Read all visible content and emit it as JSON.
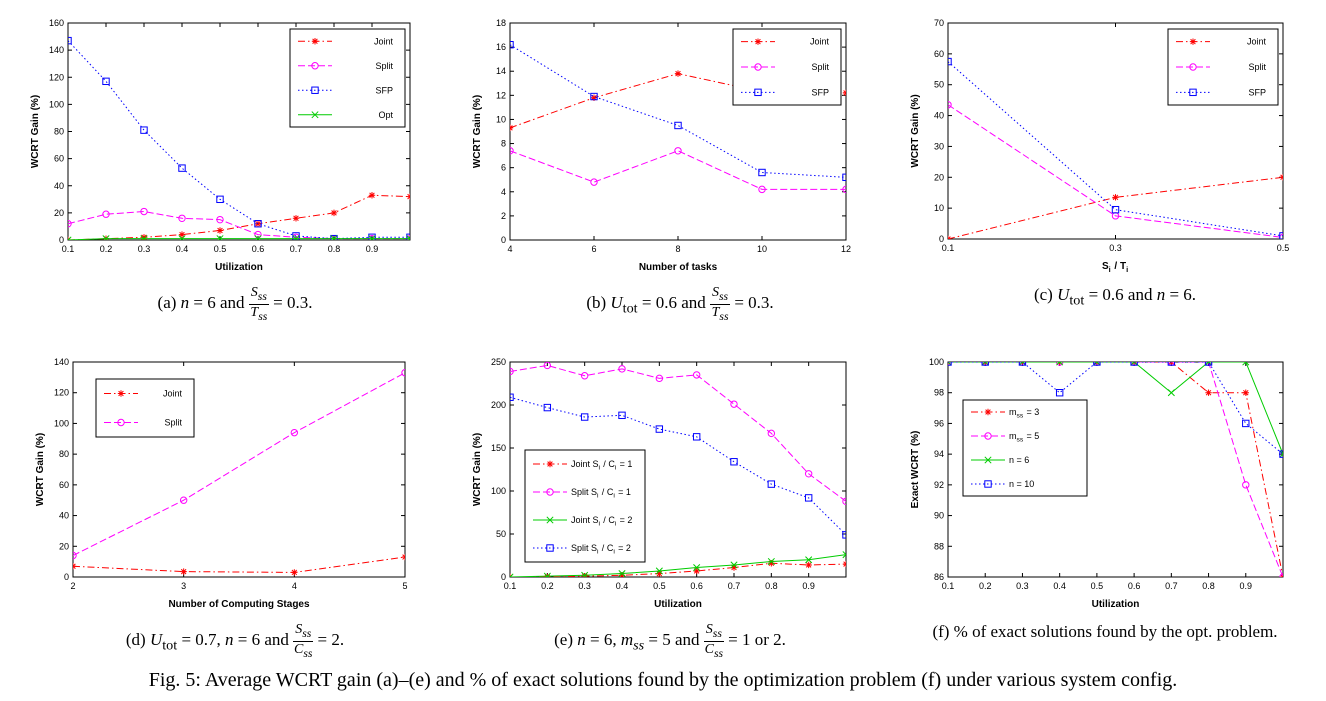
{
  "figure_caption": "Fig. 5: Average WCRT gain (a)–(e) and % of exact solutions found by the optimization problem (f) under various system config.",
  "chart_data": [
    {
      "id": "a",
      "type": "line",
      "caption": "(a) n = 6 and S_ss/T_ss = 0.3.",
      "xlabel": "Utilization",
      "ylabel": "WCRT Gain (%)",
      "x": [
        0.1,
        0.2,
        0.3,
        0.4,
        0.5,
        0.6,
        0.7,
        0.8,
        0.9,
        1.0
      ],
      "xlim": [
        0.1,
        1.0
      ],
      "ylim": [
        0,
        160
      ],
      "xticks": [
        0.1,
        0.2,
        0.3,
        0.4,
        0.5,
        0.6,
        0.7,
        0.8,
        0.9
      ],
      "xtick_labels": [
        "0.1",
        "0.2",
        "0.3",
        "0.4",
        "0.5",
        "0.6",
        "0.7",
        "0.8",
        "0.9"
      ],
      "yticks": [
        0,
        20,
        40,
        60,
        80,
        100,
        120,
        140,
        160
      ],
      "ytick_labels": [
        "0",
        "20",
        "40",
        "60",
        "80",
        "100",
        "120",
        "140",
        "160"
      ],
      "legend": "top-right",
      "series": [
        {
          "name": "Joint",
          "color": "#ff0000",
          "marker": "star",
          "dash": "dashdot",
          "values": [
            0,
            1,
            2,
            4,
            7,
            12,
            16,
            20,
            33,
            32
          ]
        },
        {
          "name": "Split",
          "color": "#ff00ff",
          "marker": "circle",
          "dash": "dashed",
          "values": [
            12,
            19,
            21,
            16,
            15,
            4,
            2,
            1,
            1,
            1
          ]
        },
        {
          "name": "SFP",
          "color": "#0000ff",
          "marker": "square",
          "dash": "dotted",
          "values": [
            147,
            117,
            81,
            53,
            30,
            12,
            3,
            1,
            2,
            2
          ]
        },
        {
          "name": "Opt",
          "color": "#00cc00",
          "marker": "x",
          "dash": "solid",
          "values": [
            0,
            1,
            1,
            1,
            1,
            1,
            1,
            1,
            1,
            1
          ]
        }
      ]
    },
    {
      "id": "b",
      "type": "line",
      "caption": "(b) U_tot = 0.6 and S_ss/T_ss = 0.3.",
      "xlabel": "Number of tasks",
      "ylabel": "WCRT Gain (%)",
      "x": [
        4,
        6,
        8,
        10,
        12
      ],
      "xlim": [
        4,
        12
      ],
      "ylim": [
        0,
        18
      ],
      "xticks": [
        4,
        6,
        8,
        10,
        12
      ],
      "xtick_labels": [
        "4",
        "6",
        "8",
        "10",
        "12"
      ],
      "yticks": [
        0,
        2,
        4,
        6,
        8,
        10,
        12,
        14,
        16,
        18
      ],
      "ytick_labels": [
        "0",
        "2",
        "4",
        "6",
        "8",
        "10",
        "12",
        "14",
        "16",
        "18"
      ],
      "legend": "top-right",
      "series": [
        {
          "name": "Joint",
          "color": "#ff0000",
          "marker": "star",
          "dash": "dashdot",
          "values": [
            9.3,
            11.8,
            13.8,
            12.3,
            12.2
          ]
        },
        {
          "name": "Split",
          "color": "#ff00ff",
          "marker": "circle",
          "dash": "dashed",
          "values": [
            7.4,
            4.8,
            7.4,
            4.2,
            4.2
          ]
        },
        {
          "name": "SFP",
          "color": "#0000ff",
          "marker": "square",
          "dash": "dotted",
          "values": [
            16.2,
            11.9,
            9.5,
            5.6,
            5.2
          ]
        }
      ]
    },
    {
      "id": "c",
      "type": "line",
      "caption": "(c) U_tot = 0.6 and n = 6.",
      "xlabel": "S_i / T_i",
      "ylabel": "WCRT Gain (%)",
      "x": [
        0.1,
        0.3,
        0.5
      ],
      "xlim": [
        0.1,
        0.5
      ],
      "ylim": [
        0,
        70
      ],
      "xticks": [
        0.1,
        0.3,
        0.5
      ],
      "xtick_labels": [
        "0.1",
        "0.3",
        "0.5"
      ],
      "yticks": [
        0,
        10,
        20,
        30,
        40,
        50,
        60,
        70
      ],
      "ytick_labels": [
        "0",
        "10",
        "20",
        "30",
        "40",
        "50",
        "60",
        "70"
      ],
      "legend": "top-right",
      "series": [
        {
          "name": "Joint",
          "color": "#ff0000",
          "marker": "star",
          "dash": "dashdot",
          "values": [
            0,
            13.5,
            20
          ]
        },
        {
          "name": "Split",
          "color": "#ff00ff",
          "marker": "circle",
          "dash": "dashed",
          "values": [
            43.5,
            7.5,
            0.5
          ]
        },
        {
          "name": "SFP",
          "color": "#0000ff",
          "marker": "square",
          "dash": "dotted",
          "values": [
            57.5,
            9.5,
            1
          ]
        }
      ]
    },
    {
      "id": "d",
      "type": "line",
      "caption": "(d) U_tot = 0.7, n = 6 and S_ss/C_ss = 2.",
      "xlabel": "Number of Computing Stages",
      "ylabel": "WCRT Gain (%)",
      "x": [
        2,
        3,
        4,
        5
      ],
      "xlim": [
        2,
        5
      ],
      "ylim": [
        0,
        140
      ],
      "xticks": [
        2,
        3,
        4,
        5
      ],
      "xtick_labels": [
        "2",
        "3",
        "4",
        "5"
      ],
      "yticks": [
        0,
        20,
        40,
        60,
        80,
        100,
        120,
        140
      ],
      "ytick_labels": [
        "0",
        "20",
        "40",
        "60",
        "80",
        "100",
        "120",
        "140"
      ],
      "legend": "top-left",
      "series": [
        {
          "name": "Joint",
          "color": "#ff0000",
          "marker": "star",
          "dash": "dashdot",
          "values": [
            7,
            3.5,
            3,
            13
          ]
        },
        {
          "name": "Split",
          "color": "#ff00ff",
          "marker": "circle",
          "dash": "dashed",
          "values": [
            14,
            50,
            94,
            133
          ]
        }
      ]
    },
    {
      "id": "e",
      "type": "line",
      "caption": "(e) n = 6, m_ss = 5 and S_ss/C_ss = 1 or 2.",
      "xlabel": "Utilization",
      "ylabel": "WCRT Gain (%)",
      "x": [
        0.1,
        0.2,
        0.3,
        0.4,
        0.5,
        0.6,
        0.7,
        0.8,
        0.9,
        1.0
      ],
      "xlim": [
        0.1,
        1.0
      ],
      "ylim": [
        0,
        250
      ],
      "xticks": [
        0.1,
        0.2,
        0.3,
        0.4,
        0.5,
        0.6,
        0.7,
        0.8,
        0.9
      ],
      "xtick_labels": [
        "0.1",
        "0.2",
        "0.3",
        "0.4",
        "0.5",
        "0.6",
        "0.7",
        "0.8",
        "0.9"
      ],
      "yticks": [
        0,
        50,
        100,
        150,
        200,
        250
      ],
      "ytick_labels": [
        "0",
        "50",
        "100",
        "150",
        "200",
        "250"
      ],
      "legend": "bottom-left",
      "series": [
        {
          "name": "Joint S_i / C_i = 1",
          "color": "#ff0000",
          "marker": "star",
          "dash": "dashdot",
          "values": [
            0,
            0,
            1,
            2,
            4,
            7,
            11,
            16,
            14,
            15
          ]
        },
        {
          "name": "Split S_i / C_i = 1",
          "color": "#ff00ff",
          "marker": "circle",
          "dash": "dashed",
          "values": [
            239,
            246,
            234,
            242,
            231,
            235,
            201,
            167,
            120,
            88
          ]
        },
        {
          "name": "Joint S_i / C_i = 2",
          "color": "#00cc00",
          "marker": "x",
          "dash": "solid",
          "values": [
            0,
            1,
            2,
            4,
            7,
            11,
            14,
            18,
            20,
            26
          ]
        },
        {
          "name": "Split S_i / C_i = 2",
          "color": "#0000ff",
          "marker": "square",
          "dash": "dotted",
          "values": [
            209,
            197,
            186,
            188,
            172,
            163,
            134,
            108,
            92,
            49
          ]
        }
      ]
    },
    {
      "id": "f",
      "type": "line",
      "caption": "(f) % of exact solutions found by the opt. problem.",
      "xlabel": "Utilization",
      "ylabel": "Exact WCRT (%)",
      "x": [
        0.1,
        0.2,
        0.3,
        0.4,
        0.5,
        0.6,
        0.7,
        0.8,
        0.9,
        1.0
      ],
      "xlim": [
        0.1,
        1.0
      ],
      "ylim": [
        86,
        100
      ],
      "xticks": [
        0.1,
        0.2,
        0.3,
        0.4,
        0.5,
        0.6,
        0.7,
        0.8,
        0.9
      ],
      "xtick_labels": [
        "0.1",
        "0.2",
        "0.3",
        "0.4",
        "0.5",
        "0.6",
        "0.7",
        "0.8",
        "0.9"
      ],
      "yticks": [
        86,
        88,
        90,
        92,
        94,
        96,
        98,
        100
      ],
      "ytick_labels": [
        "86",
        "88",
        "90",
        "92",
        "94",
        "96",
        "98",
        "100"
      ],
      "legend": "center-left",
      "series": [
        {
          "name": "m_ss = 3",
          "color": "#ff0000",
          "marker": "star",
          "dash": "dashdot",
          "values": [
            100,
            100,
            100,
            100,
            100,
            100,
            100,
            98,
            98,
            86
          ]
        },
        {
          "name": "m_ss = 5",
          "color": "#ff00ff",
          "marker": "circle",
          "dash": "dashed",
          "values": [
            100,
            100,
            100,
            100,
            100,
            100,
            100,
            100,
            92,
            86
          ]
        },
        {
          "name": "n = 6",
          "color": "#00cc00",
          "marker": "x",
          "dash": "solid",
          "values": [
            100,
            100,
            100,
            100,
            100,
            100,
            98,
            100,
            100,
            94
          ]
        },
        {
          "name": "n = 10",
          "color": "#0000ff",
          "marker": "square",
          "dash": "dotted",
          "values": [
            100,
            100,
            100,
            98,
            100,
            100,
            100,
            100,
            96,
            94
          ]
        }
      ]
    }
  ]
}
